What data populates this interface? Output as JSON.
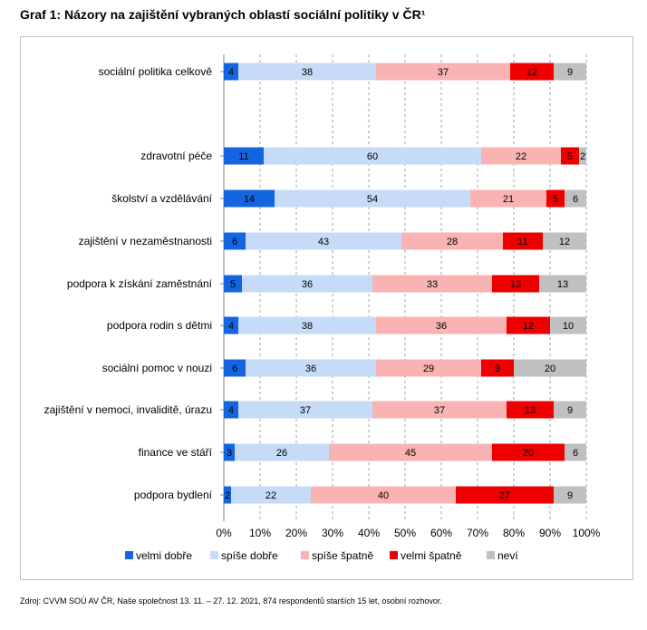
{
  "title": "Graf 1: Názory na zajištění vybraných oblastí sociální politiky v ČR¹",
  "source": "Zdroj: CVVM SOÚ AV ČR, Naše společnost 13. 11. – 27. 12. 2021, 874 respondentů starších 15 let, osobní rozhovor.",
  "chart_data": {
    "type": "bar",
    "orientation": "horizontal",
    "stacked": true,
    "percent_stacked": true,
    "categories": [
      "sociální politika celkově",
      "zdravotní péče",
      "školství a vzdělávání",
      "zajištění v nezaměstnanosti",
      "podpora k získání zaměstnání",
      "podpora rodin s dětmi",
      "sociální pomoc v nouzi",
      "zajištění v nemoci, invaliditě, úrazu",
      "finance ve stáří",
      "podpora bydlení"
    ],
    "series": [
      {
        "name": "velmi dobře",
        "color": "#1565e0",
        "values": [
          4,
          11,
          14,
          6,
          5,
          4,
          6,
          4,
          3,
          2
        ]
      },
      {
        "name": "spíše dobře",
        "color": "#c6dbf7",
        "values": [
          38,
          60,
          54,
          43,
          36,
          38,
          36,
          37,
          26,
          22
        ]
      },
      {
        "name": "spíše špatně",
        "color": "#f9b3b3",
        "values": [
          37,
          22,
          21,
          28,
          33,
          36,
          29,
          37,
          45,
          40
        ]
      },
      {
        "name": "velmi špatně",
        "color": "#ee0000",
        "values": [
          12,
          5,
          5,
          11,
          13,
          12,
          9,
          13,
          20,
          27
        ]
      },
      {
        "name": "neví",
        "color": "#c0c0c0",
        "values": [
          9,
          2,
          6,
          12,
          13,
          10,
          20,
          9,
          6,
          9
        ]
      }
    ],
    "xticks": [
      "0%",
      "10%",
      "20%",
      "30%",
      "40%",
      "50%",
      "60%",
      "70%",
      "80%",
      "90%",
      "100%"
    ],
    "xlim": [
      0,
      100
    ],
    "grid": "vertical",
    "legend_position": "bottom"
  }
}
